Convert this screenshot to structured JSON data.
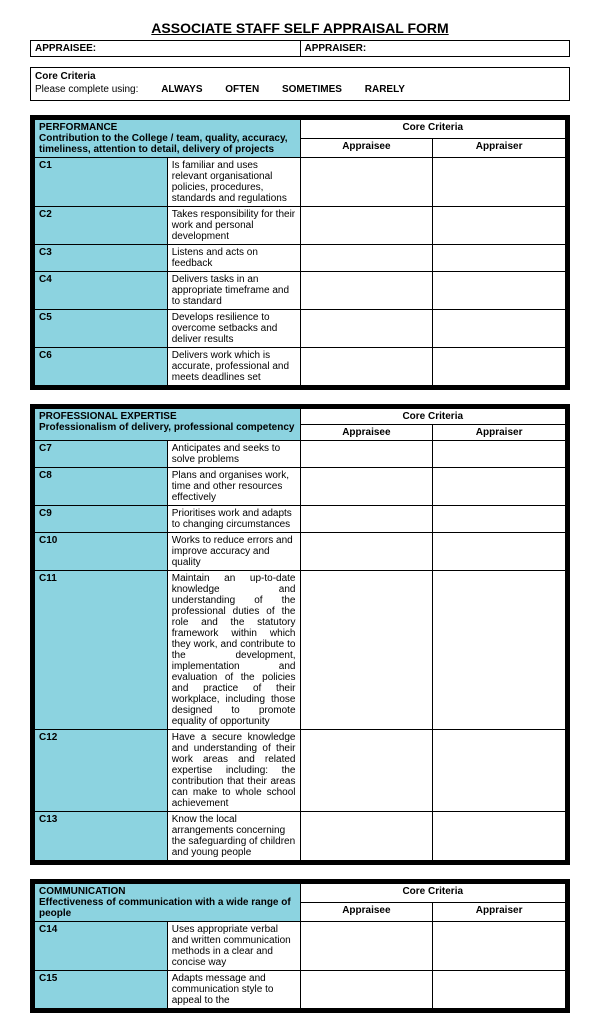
{
  "title": "ASSOCIATE STAFF SELF APPRAISAL FORM",
  "header": {
    "appraisee_label": "APPRAISEE:",
    "appraiser_label": "APPRAISER:"
  },
  "core_box": {
    "title": "Core Criteria",
    "instruct": "Please complete using:",
    "options": [
      "ALWAYS",
      "OFTEN",
      "SOMETIMES",
      "RARELY"
    ]
  },
  "cc_group_label": "Core Criteria",
  "cc_cols": {
    "a": "Appraisee",
    "b": "Appraiser"
  },
  "sections": [
    {
      "heading": "PERFORMANCE",
      "subheading": "Contribution to the College / team, quality, accuracy, timeliness, attention to detail, delivery of projects",
      "rows": [
        {
          "code": "C1",
          "desc": "Is familiar and uses relevant organisational policies, procedures, standards and regulations"
        },
        {
          "code": "C2",
          "desc": "Takes responsibility for their work and personal development"
        },
        {
          "code": "C3",
          "desc": "Listens and acts on feedback"
        },
        {
          "code": "C4",
          "desc": "Delivers tasks in an appropriate timeframe and to standard"
        },
        {
          "code": "C5",
          "desc": "Develops resilience to overcome setbacks and deliver results"
        },
        {
          "code": "C6",
          "desc": "Delivers work which is accurate, professional and meets deadlines set"
        }
      ]
    },
    {
      "heading": "PROFESSIONAL EXPERTISE",
      "subheading": "Professionalism of delivery, professional competency",
      "rows": [
        {
          "code": "C7",
          "desc": "Anticipates and seeks to solve problems"
        },
        {
          "code": "C8",
          "desc": "Plans and organises work, time and other resources effectively"
        },
        {
          "code": "C9",
          "desc": "Prioritises work and adapts to changing circumstances"
        },
        {
          "code": "C10",
          "desc": "Works to reduce errors and improve accuracy and quality"
        },
        {
          "code": "C11",
          "desc": "Maintain an up-to-date knowledge and understanding of the professional duties of the role and the statutory framework within which they work, and contribute to the development, implementation and evaluation of the policies and practice of their workplace, including those designed to promote equality of opportunity",
          "just": true
        },
        {
          "code": "C12",
          "desc": "Have a secure knowledge and understanding of their work areas and related expertise including: the contribution that their areas can make to whole school achievement",
          "just": true
        },
        {
          "code": "C13",
          "desc": "Know the local arrangements concerning the safeguarding of children and young people"
        }
      ]
    },
    {
      "heading": "COMMUNICATION",
      "subheading": "Effectiveness of communication with a wide range of people",
      "rows": [
        {
          "code": "C14",
          "desc": "Uses appropriate verbal and written communication methods in a clear and concise way"
        },
        {
          "code": "C15",
          "desc": "Adapts message and communication style to appeal to the"
        }
      ]
    }
  ],
  "colors": {
    "accent": "#8cd3e0",
    "border": "#000000",
    "bg": "#ffffff"
  }
}
